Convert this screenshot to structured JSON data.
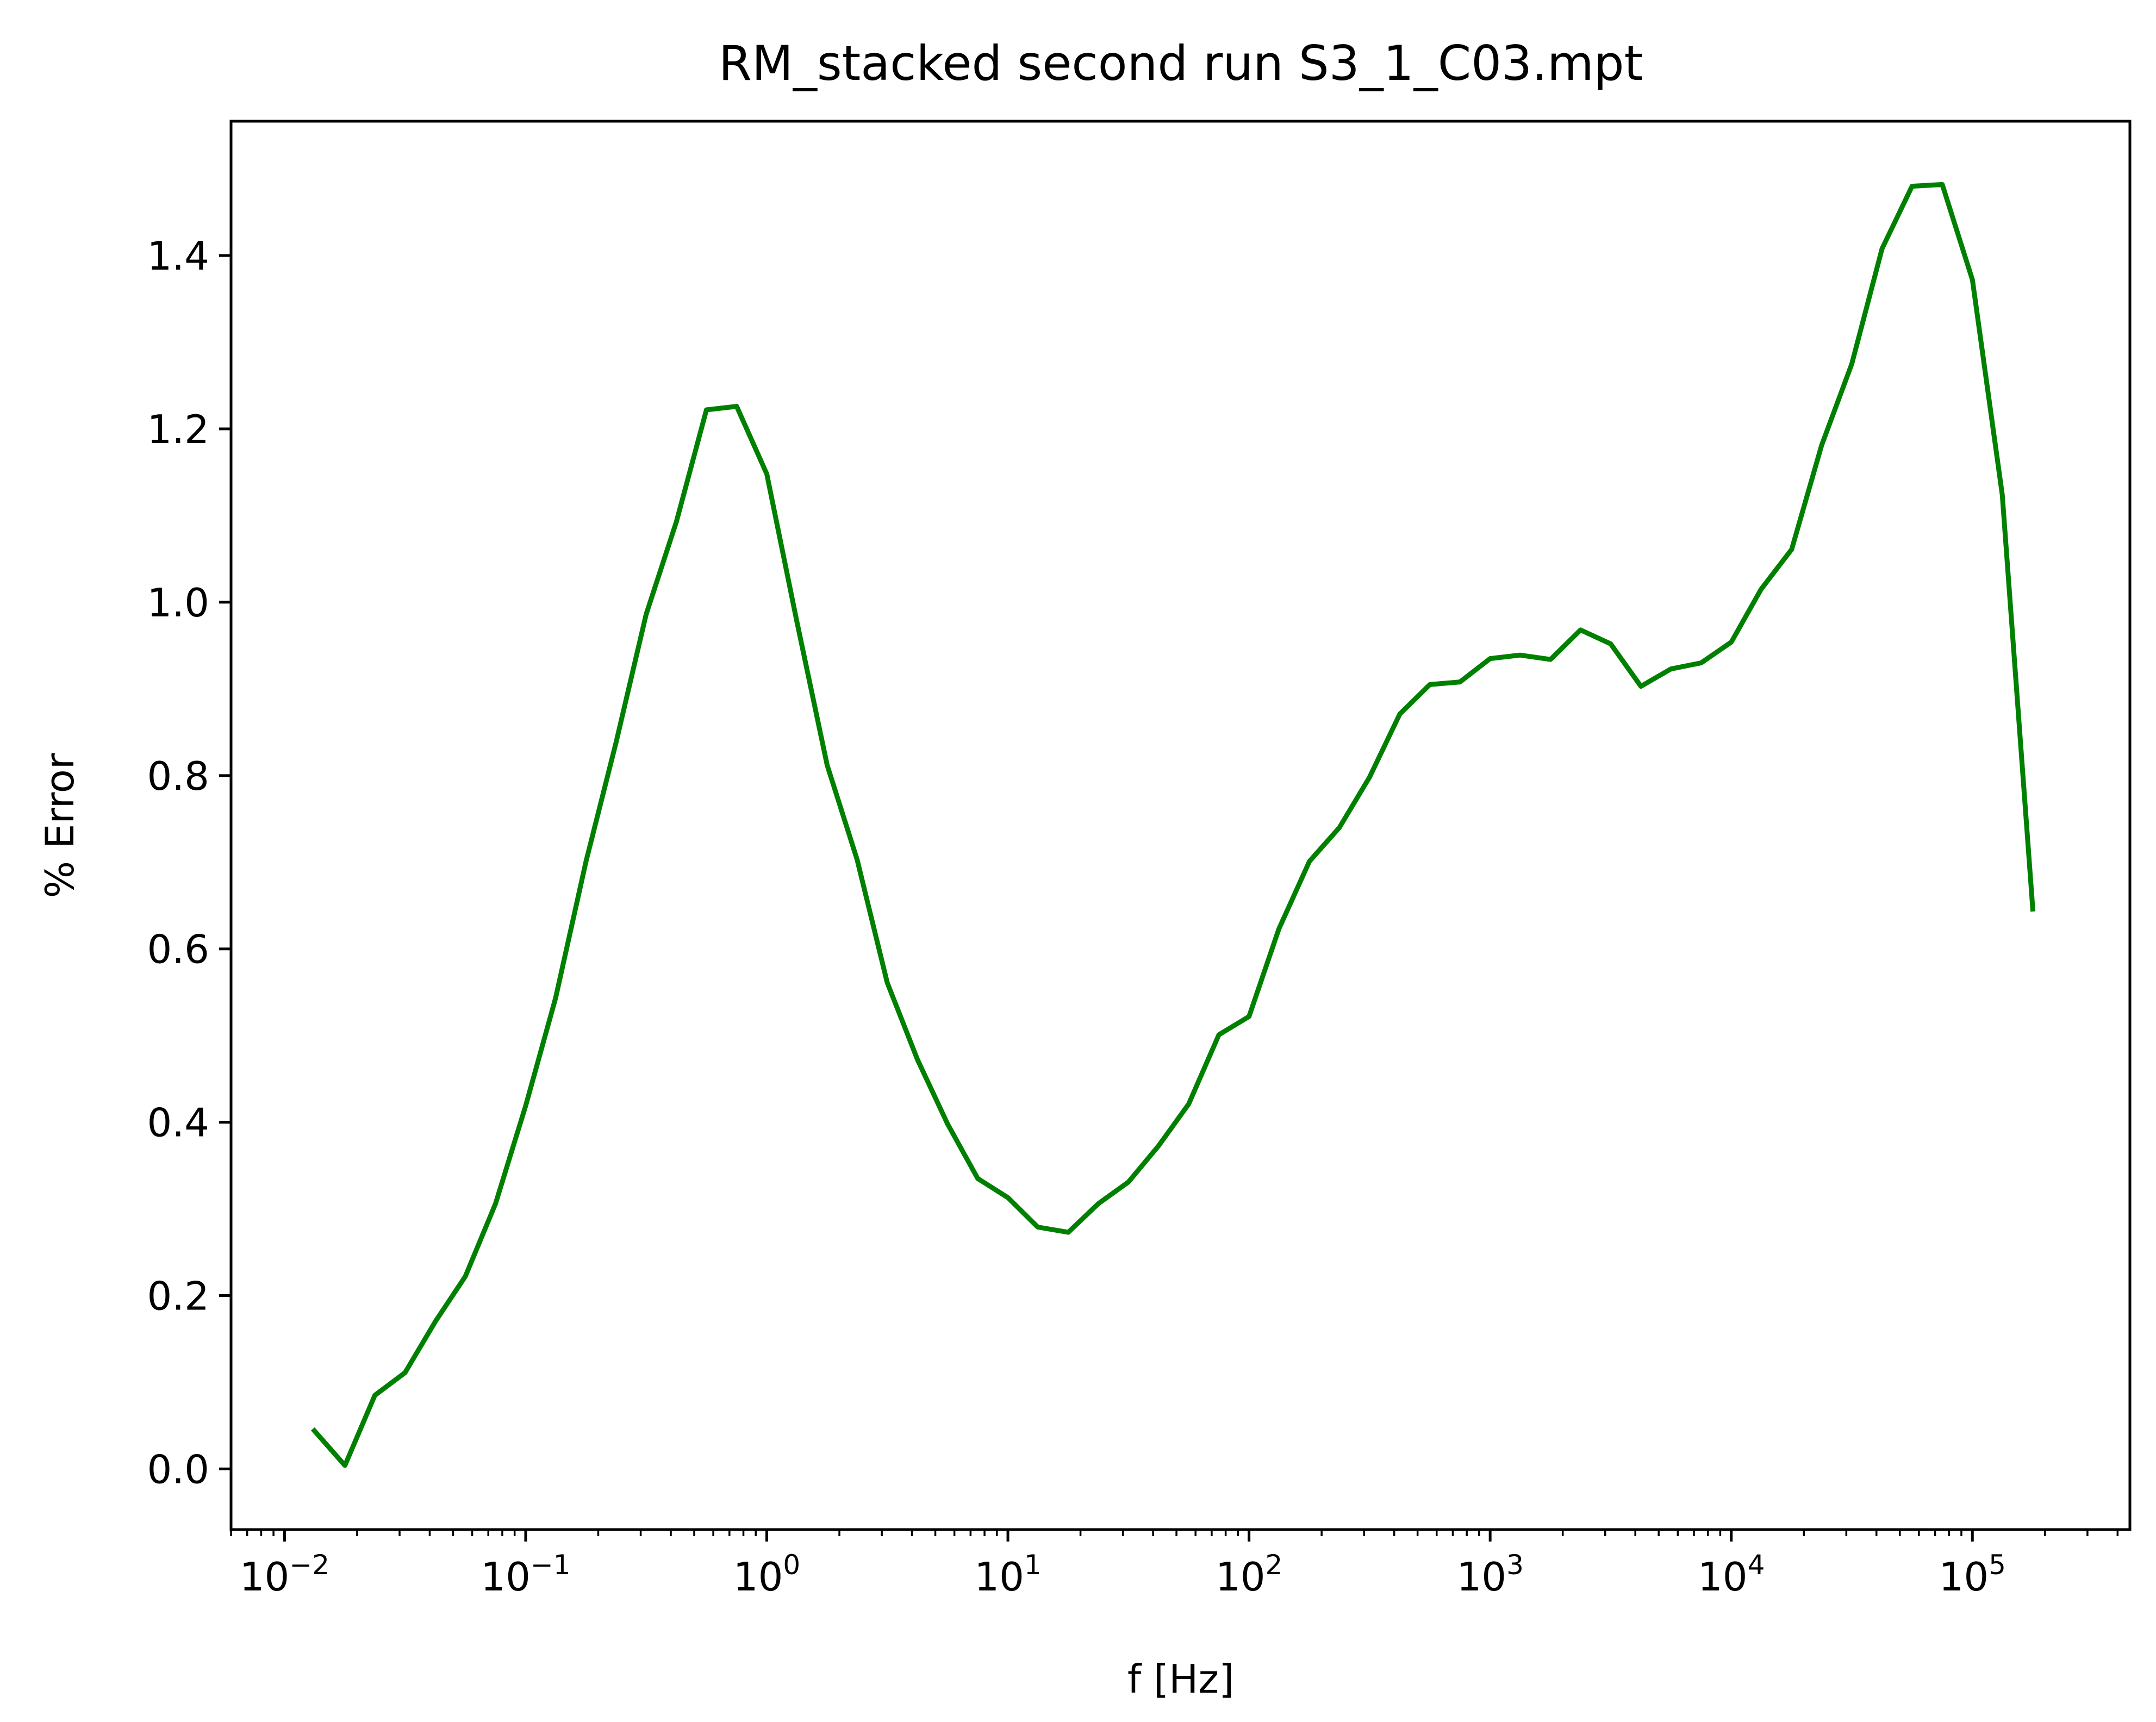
{
  "chart_data": {
    "type": "line",
    "title": "RM_stacked second run S3_1_C03.mpt",
    "xlabel": "f [Hz]",
    "ylabel": "% Error",
    "xscale": "log",
    "xlim": [
      0.006,
      450000
    ],
    "ylim": [
      -0.07,
      1.555
    ],
    "grid": false,
    "x_ticks": [
      {
        "value": 0.01,
        "mant": "10",
        "exp": "−2"
      },
      {
        "value": 0.1,
        "mant": "10",
        "exp": "−1"
      },
      {
        "value": 1,
        "mant": "10",
        "exp": "0"
      },
      {
        "value": 10,
        "mant": "10",
        "exp": "1"
      },
      {
        "value": 100,
        "mant": "10",
        "exp": "2"
      },
      {
        "value": 1000,
        "mant": "10",
        "exp": "3"
      },
      {
        "value": 10000,
        "mant": "10",
        "exp": "4"
      },
      {
        "value": 100000,
        "mant": "10",
        "exp": "5"
      }
    ],
    "y_ticks": [
      {
        "value": 0.0,
        "label": "0.0"
      },
      {
        "value": 0.2,
        "label": "0.2"
      },
      {
        "value": 0.4,
        "label": "0.4"
      },
      {
        "value": 0.6,
        "label": "0.6"
      },
      {
        "value": 0.8,
        "label": "0.8"
      },
      {
        "value": 1.0,
        "label": "1.0"
      },
      {
        "value": 1.2,
        "label": "1.2"
      },
      {
        "value": 1.4,
        "label": "1.4"
      }
    ],
    "series": [
      {
        "color": "#008000",
        "x": [
          0.0133,
          0.0178,
          0.0237,
          0.0316,
          0.0422,
          0.0562,
          0.075,
          0.1,
          0.133,
          0.178,
          0.237,
          0.316,
          0.422,
          0.562,
          0.75,
          1.0,
          1.33,
          1.78,
          2.37,
          3.16,
          4.22,
          5.62,
          7.5,
          10,
          13.3,
          17.8,
          23.7,
          31.6,
          42.2,
          56.2,
          75,
          100,
          133,
          178,
          237,
          316,
          422,
          562,
          750,
          1000,
          1330,
          1780,
          2370,
          3160,
          4220,
          5620,
          7500,
          10000,
          13300,
          17800,
          23700,
          31600,
          42200,
          56200,
          75000,
          100000,
          133000,
          178000
        ],
        "y": [
          0.044,
          0.004,
          0.085,
          0.111,
          0.17,
          0.222,
          0.306,
          0.419,
          0.543,
          0.701,
          0.838,
          0.986,
          1.093,
          1.222,
          1.226,
          1.148,
          0.979,
          0.812,
          0.703,
          0.561,
          0.472,
          0.398,
          0.335,
          0.313,
          0.279,
          0.273,
          0.306,
          0.331,
          0.373,
          0.421,
          0.501,
          0.522,
          0.623,
          0.701,
          0.74,
          0.798,
          0.871,
          0.905,
          0.908,
          0.935,
          0.939,
          0.934,
          0.968,
          0.952,
          0.903,
          0.923,
          0.93,
          0.954,
          1.015,
          1.061,
          1.181,
          1.275,
          1.408,
          1.48,
          1.482,
          1.372,
          1.124,
          0.646
        ]
      }
    ]
  }
}
